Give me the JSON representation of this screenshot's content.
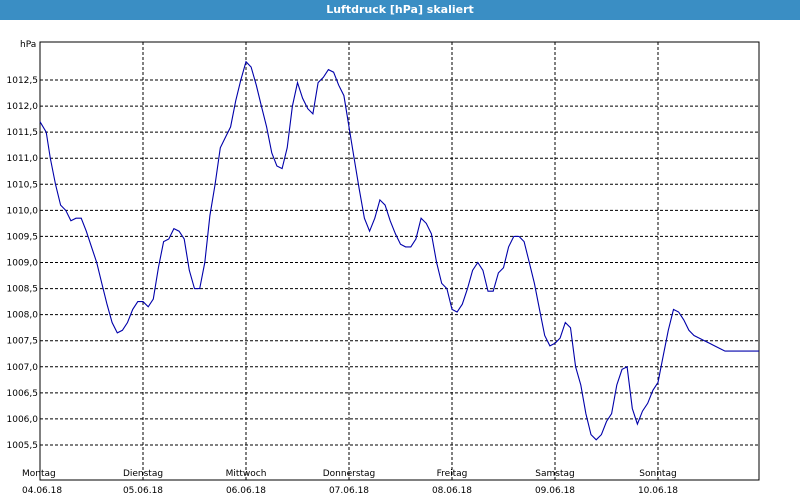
{
  "title": "Luftdruck [hPa] skaliert",
  "chart_data": {
    "type": "line",
    "ylabel": "hPa",
    "ylim": [
      1005.3,
      1013.4
    ],
    "xlim": [
      0,
      7
    ],
    "yticks": [
      {
        "value": 1005.5,
        "label": "1005,5"
      },
      {
        "value": 1006.0,
        "label": "1006,0"
      },
      {
        "value": 1006.5,
        "label": "1006,5"
      },
      {
        "value": 1007.0,
        "label": "1007,0"
      },
      {
        "value": 1007.5,
        "label": "1007,5"
      },
      {
        "value": 1008.0,
        "label": "1008,0"
      },
      {
        "value": 1008.5,
        "label": "1008,5"
      },
      {
        "value": 1009.0,
        "label": "1009,0"
      },
      {
        "value": 1009.5,
        "label": "1009,5"
      },
      {
        "value": 1010.0,
        "label": "1010,0"
      },
      {
        "value": 1010.5,
        "label": "1010,5"
      },
      {
        "value": 1011.0,
        "label": "1011,0"
      },
      {
        "value": 1011.5,
        "label": "1011,5"
      },
      {
        "value": 1012.0,
        "label": "1012,0"
      },
      {
        "value": 1012.5,
        "label": "1012,5"
      }
    ],
    "xticks": [
      {
        "value": 0,
        "day": "Montag",
        "date": "04.06.18"
      },
      {
        "value": 1,
        "day": "Dienstag",
        "date": "05.06.18"
      },
      {
        "value": 2,
        "day": "Mittwoch",
        "date": "06.06.18"
      },
      {
        "value": 3,
        "day": "Donnerstag",
        "date": "07.06.18"
      },
      {
        "value": 4,
        "day": "Freitag",
        "date": "08.06.18"
      },
      {
        "value": 5,
        "day": "Samstag",
        "date": "09.06.18"
      },
      {
        "value": 6,
        "day": "Sonntag",
        "date": "10.06.18"
      }
    ],
    "grid": true,
    "series": [
      {
        "color": "#0000aa",
        "x": [
          0,
          0.06,
          0.1,
          0.15,
          0.2,
          0.25,
          0.3,
          0.35,
          0.4,
          0.45,
          0.5,
          0.55,
          0.6,
          0.65,
          0.7,
          0.75,
          0.8,
          0.85,
          0.9,
          0.95,
          1.0,
          1.05,
          1.1,
          1.15,
          1.2,
          1.25,
          1.3,
          1.35,
          1.4,
          1.45,
          1.5,
          1.55,
          1.6,
          1.65,
          1.7,
          1.75,
          1.8,
          1.85,
          1.9,
          1.95,
          2.0,
          2.05,
          2.1,
          2.15,
          2.2,
          2.25,
          2.3,
          2.35,
          2.4,
          2.45,
          2.5,
          2.55,
          2.6,
          2.65,
          2.7,
          2.75,
          2.8,
          2.85,
          2.9,
          2.95,
          3.0,
          3.05,
          3.1,
          3.15,
          3.2,
          3.25,
          3.3,
          3.35,
          3.4,
          3.45,
          3.5,
          3.55,
          3.6,
          3.65,
          3.7,
          3.75,
          3.8,
          3.85,
          3.9,
          3.95,
          4.0,
          4.05,
          4.1,
          4.15,
          4.2,
          4.25,
          4.3,
          4.35,
          4.4,
          4.45,
          4.5,
          4.55,
          4.6,
          4.65,
          4.7,
          4.75,
          4.8,
          4.85,
          4.9,
          4.95,
          5.0,
          5.05,
          5.1,
          5.15,
          5.2,
          5.25,
          5.3,
          5.35,
          5.4,
          5.45,
          5.5,
          5.55,
          5.6,
          5.65,
          5.7,
          5.75,
          5.8,
          5.85,
          5.9,
          5.95,
          6.0,
          6.05,
          6.1,
          6.15,
          6.2,
          6.25,
          6.3,
          6.35,
          6.4,
          6.45,
          6.5,
          6.55,
          6.6,
          6.65,
          6.7,
          6.75,
          6.8,
          6.85,
          6.9,
          6.95,
          7.0
        ],
        "values": [
          1011.7,
          1011.5,
          1011.0,
          1010.5,
          1010.1,
          1010.0,
          1009.8,
          1009.85,
          1009.85,
          1009.6,
          1009.3,
          1009.0,
          1008.6,
          1008.2,
          1007.85,
          1007.65,
          1007.7,
          1007.85,
          1008.1,
          1008.25,
          1008.25,
          1008.15,
          1008.3,
          1008.9,
          1009.4,
          1009.45,
          1009.65,
          1009.6,
          1009.45,
          1008.85,
          1008.5,
          1008.5,
          1009.0,
          1009.9,
          1010.5,
          1011.2,
          1011.4,
          1011.6,
          1012.1,
          1012.5,
          1012.85,
          1012.75,
          1012.4,
          1012.0,
          1011.6,
          1011.1,
          1010.85,
          1010.8,
          1011.2,
          1012.0,
          1012.45,
          1012.15,
          1011.95,
          1011.85,
          1012.45,
          1012.55,
          1012.7,
          1012.65,
          1012.4,
          1012.2,
          1011.6,
          1011.0,
          1010.4,
          1009.85,
          1009.6,
          1009.85,
          1010.2,
          1010.1,
          1009.8,
          1009.55,
          1009.35,
          1009.3,
          1009.3,
          1009.45,
          1009.85,
          1009.75,
          1009.55,
          1009.0,
          1008.6,
          1008.5,
          1008.1,
          1008.05,
          1008.2,
          1008.5,
          1008.85,
          1009.0,
          1008.85,
          1008.45,
          1008.45,
          1008.8,
          1008.9,
          1009.3,
          1009.5,
          1009.5,
          1009.4,
          1009.0,
          1008.6,
          1008.1,
          1007.6,
          1007.4,
          1007.45,
          1007.55,
          1007.85,
          1007.75,
          1007.0,
          1006.65,
          1006.1,
          1005.7,
          1005.6,
          1005.7,
          1005.95,
          1006.1,
          1006.65,
          1006.95,
          1007.0,
          1006.2,
          1005.9,
          1006.15,
          1006.3,
          1006.55,
          1006.7,
          1007.2,
          1007.7,
          1008.1,
          1008.05,
          1007.9,
          1007.7,
          1007.6,
          1007.55,
          1007.5,
          1007.45,
          1007.4,
          1007.35,
          1007.3,
          1007.3,
          1007.3,
          1007.3,
          1007.3,
          1007.3,
          1007.3,
          1007.3
        ]
      }
    ]
  }
}
